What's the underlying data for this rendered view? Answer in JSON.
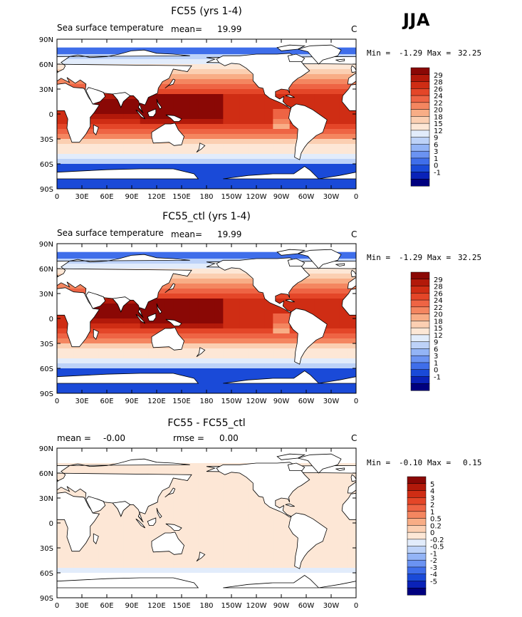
{
  "season": "JJA",
  "colors": {
    "sst": [
      "#00007f",
      "#0a22b8",
      "#1a4ad8",
      "#3f6eea",
      "#6b93f2",
      "#93b4f6",
      "#bdd2f8",
      "#e2ecfb",
      "#fde7d6",
      "#fbcfb2",
      "#f8ad86",
      "#f48660",
      "#ee6444",
      "#e44628",
      "#cf2d14",
      "#b2190a",
      "#8a0805"
    ],
    "diff": [
      "#00007f",
      "#0a22b8",
      "#1a4ad8",
      "#3f6eea",
      "#6b93f2",
      "#93b4f6",
      "#bdd2f8",
      "#e2ecfb",
      "#fde7d6",
      "#fbcfb2",
      "#f8ad86",
      "#f48660",
      "#ee6444",
      "#e44628",
      "#cf2d14",
      "#b2190a",
      "#8a0805"
    ],
    "land": "#ffffff",
    "coast": "#000000"
  },
  "chart_data": [
    {
      "type": "heatmap",
      "title": "FC55 (yrs 1-4)",
      "field_label": "Sea surface temperature",
      "mean_label": "mean=",
      "mean_value": "19.99",
      "units": "C",
      "min_label": "Min =",
      "min_value": "-1.29",
      "max_label": "Max =",
      "max_value": "32.25",
      "colorbar_labels": [
        "29",
        "28",
        "26",
        "24",
        "22",
        "20",
        "18",
        "15",
        "12",
        "9",
        "6",
        "3",
        "1",
        "0",
        "-1"
      ],
      "levels": [
        -1,
        0,
        1,
        3,
        6,
        9,
        12,
        15,
        18,
        20,
        22,
        24,
        26,
        28,
        29
      ],
      "lat_ticks": [
        "90N",
        "60N",
        "30N",
        "0",
        "30S",
        "60S",
        "90S"
      ],
      "lon_ticks": [
        "0",
        "30E",
        "60E",
        "90E",
        "120E",
        "150E",
        "180",
        "150W",
        "120W",
        "90W",
        "60W",
        "30W",
        "0"
      ],
      "mode": "sst"
    },
    {
      "type": "heatmap",
      "title": "FC55_ctl (yrs 1-4)",
      "field_label": "Sea surface temperature",
      "mean_label": "mean=",
      "mean_value": "19.99",
      "units": "C",
      "min_label": "Min =",
      "min_value": "-1.29",
      "max_label": "Max =",
      "max_value": "32.25",
      "colorbar_labels": [
        "29",
        "28",
        "26",
        "24",
        "22",
        "20",
        "18",
        "15",
        "12",
        "9",
        "6",
        "3",
        "1",
        "0",
        "-1"
      ],
      "levels": [
        -1,
        0,
        1,
        3,
        6,
        9,
        12,
        15,
        18,
        20,
        22,
        24,
        26,
        28,
        29
      ],
      "lat_ticks": [
        "90N",
        "60N",
        "30N",
        "0",
        "30S",
        "60S",
        "90S"
      ],
      "lon_ticks": [
        "0",
        "30E",
        "60E",
        "90E",
        "120E",
        "150E",
        "180",
        "150W",
        "120W",
        "90W",
        "60W",
        "30W",
        "0"
      ],
      "mode": "sst"
    },
    {
      "type": "heatmap",
      "title": "FC55 - FC55_ctl",
      "mean_label": "mean =",
      "mean_value": "-0.00",
      "rmse_label": "rmse =",
      "rmse_value": "0.00",
      "units": "C",
      "min_label": "Min =",
      "min_value": "-0.10",
      "max_label": "Max =",
      "max_value": "0.15",
      "colorbar_labels": [
        "5",
        "4",
        "3",
        "2",
        "1",
        "0.5",
        "0.2",
        "0",
        "-0.2",
        "-0.5",
        "-1",
        "-2",
        "-3",
        "-4",
        "-5"
      ],
      "levels": [
        -5,
        -4,
        -3,
        -2,
        -1,
        -0.5,
        -0.2,
        0,
        0.2,
        0.5,
        1,
        2,
        3,
        4,
        5
      ],
      "lat_ticks": [
        "90N",
        "60N",
        "30N",
        "0",
        "30S",
        "60S",
        "90S"
      ],
      "lon_ticks": [
        "0",
        "30E",
        "60E",
        "90E",
        "120E",
        "150E",
        "180",
        "150W",
        "120W",
        "90W",
        "60W",
        "30W",
        "0"
      ],
      "mode": "diff"
    }
  ]
}
